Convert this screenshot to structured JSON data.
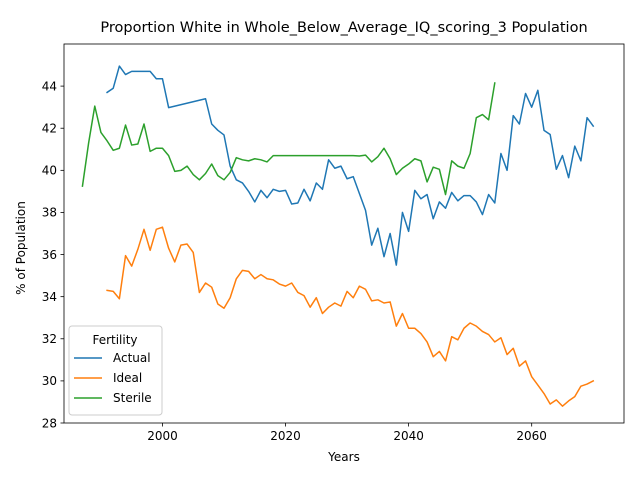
{
  "chart_data": {
    "type": "line",
    "title": "Proportion White in Whole_Below_Average_IQ_scoring_3 Population",
    "xlabel": "Years",
    "ylabel": "% of Population",
    "xlim": [
      1984,
      2075
    ],
    "ylim": [
      28,
      46
    ],
    "xticks": [
      2000,
      2020,
      2040,
      2060
    ],
    "yticks": [
      28,
      30,
      32,
      34,
      36,
      38,
      40,
      42,
      44
    ],
    "legend": {
      "title": "Fertility",
      "placement": "lower-left"
    },
    "series": [
      {
        "name": "Actual",
        "color": "#1f77b4",
        "x": [
          1991,
          1992,
          1993,
          1994,
          1995,
          1996,
          1997,
          1998,
          1999,
          2000,
          2001,
          2007,
          2008,
          2009,
          2010,
          2011,
          2012,
          2013,
          2014,
          2015,
          2016,
          2017,
          2018,
          2019,
          2020,
          2021,
          2022,
          2023,
          2024,
          2025,
          2026,
          2027,
          2028,
          2029,
          2030,
          2031,
          2032,
          2033,
          2034,
          2035,
          2036,
          2037,
          2038,
          2039,
          2040,
          2041,
          2042,
          2043,
          2044,
          2045,
          2046,
          2047,
          2048,
          2049,
          2050,
          2051,
          2052,
          2053,
          2054,
          2055,
          2056,
          2057,
          2058,
          2059,
          2060,
          2061,
          2062,
          2063,
          2064,
          2065,
          2066,
          2067,
          2068,
          2069,
          2070
        ],
        "values": [
          43.7,
          43.9,
          44.95,
          44.55,
          44.7,
          44.7,
          44.7,
          44.7,
          44.35,
          44.35,
          42.98,
          43.4,
          42.2,
          41.9,
          41.68,
          40.2,
          39.55,
          39.4,
          39.0,
          38.5,
          39.05,
          38.7,
          39.1,
          39.0,
          39.05,
          38.4,
          38.45,
          39.1,
          38.55,
          39.4,
          39.1,
          40.5,
          40.1,
          40.2,
          39.6,
          39.7,
          38.9,
          38.1,
          36.45,
          37.25,
          35.9,
          37.0,
          35.5,
          38.0,
          37.1,
          39.05,
          38.65,
          38.85,
          37.7,
          38.5,
          38.2,
          38.95,
          38.55,
          38.8,
          38.8,
          38.5,
          37.9,
          38.85,
          38.45,
          40.8,
          40.0,
          42.6,
          42.2,
          43.65,
          43.0,
          43.8,
          41.9,
          41.7,
          40.05,
          40.7,
          39.65,
          41.15,
          40.45,
          42.5,
          42.1
        ]
      },
      {
        "name": "Ideal",
        "color": "#ff7f0e",
        "x": [
          1991,
          1992,
          1993,
          1994,
          1995,
          1996,
          1997,
          1998,
          1999,
          2000,
          2001,
          2002,
          2003,
          2004,
          2005,
          2006,
          2007,
          2008,
          2009,
          2010,
          2011,
          2012,
          2013,
          2014,
          2015,
          2016,
          2017,
          2018,
          2019,
          2020,
          2021,
          2022,
          2023,
          2024,
          2025,
          2026,
          2027,
          2028,
          2029,
          2030,
          2031,
          2032,
          2033,
          2034,
          2035,
          2036,
          2037,
          2038,
          2039,
          2040,
          2041,
          2042,
          2043,
          2044,
          2045,
          2046,
          2047,
          2048,
          2049,
          2050,
          2051,
          2052,
          2053,
          2054,
          2055,
          2056,
          2057,
          2058,
          2059,
          2060,
          2061,
          2062,
          2063,
          2064,
          2065,
          2066,
          2067,
          2068,
          2069,
          2070
        ],
        "values": [
          34.3,
          34.25,
          33.9,
          35.95,
          35.45,
          36.25,
          37.2,
          36.2,
          37.2,
          37.3,
          36.3,
          35.65,
          36.45,
          36.5,
          36.1,
          34.2,
          34.65,
          34.45,
          33.65,
          33.45,
          33.95,
          34.85,
          35.25,
          35.2,
          34.85,
          35.05,
          34.85,
          34.8,
          34.6,
          34.5,
          34.65,
          34.2,
          34.05,
          33.5,
          33.95,
          33.2,
          33.5,
          33.7,
          33.55,
          34.25,
          33.95,
          34.5,
          34.35,
          33.8,
          33.85,
          33.7,
          33.75,
          32.6,
          33.2,
          32.5,
          32.5,
          32.25,
          31.85,
          31.15,
          31.4,
          30.95,
          32.1,
          31.95,
          32.5,
          32.75,
          32.6,
          32.35,
          32.2,
          31.85,
          32.05,
          31.25,
          31.55,
          30.7,
          30.95,
          30.2,
          29.8,
          29.4,
          28.9,
          29.1,
          28.8,
          29.05,
          29.25,
          29.75,
          29.85,
          30.0
        ]
      },
      {
        "name": "Sterile",
        "color": "#2ca02c",
        "x": [
          1987,
          1988,
          1989,
          1990,
          1991,
          1992,
          1993,
          1994,
          1995,
          1996,
          1997,
          1998,
          1999,
          2000,
          2001,
          2002,
          2003,
          2004,
          2005,
          2006,
          2007,
          2008,
          2009,
          2010,
          2011,
          2012,
          2013,
          2014,
          2015,
          2016,
          2017,
          2018,
          2019,
          2020,
          2021,
          2022,
          2023,
          2024,
          2025,
          2026,
          2027,
          2028,
          2029,
          2030,
          2031,
          2032,
          2033,
          2034,
          2035,
          2036,
          2037,
          2038,
          2039,
          2040,
          2041,
          2042,
          2043,
          2044,
          2045,
          2046,
          2047,
          2048,
          2049,
          2050,
          2051,
          2052,
          2053,
          2054
        ],
        "values": [
          39.25,
          41.3,
          43.05,
          41.8,
          41.4,
          40.95,
          41.05,
          42.15,
          41.2,
          41.25,
          42.2,
          40.9,
          41.05,
          41.05,
          40.7,
          39.95,
          40.0,
          40.2,
          39.8,
          39.55,
          39.85,
          40.3,
          39.75,
          39.55,
          39.9,
          40.6,
          40.5,
          40.45,
          40.55,
          40.5,
          40.4,
          40.7,
          40.7,
          40.7,
          40.7,
          40.7,
          40.7,
          40.7,
          40.7,
          40.7,
          40.7,
          40.7,
          40.7,
          40.7,
          40.7,
          40.68,
          40.72,
          40.4,
          40.65,
          41.05,
          40.55,
          39.8,
          40.1,
          40.3,
          40.55,
          40.45,
          39.45,
          40.15,
          40.05,
          38.85,
          40.45,
          40.2,
          40.1,
          40.8,
          42.5,
          42.65,
          42.4,
          44.15
        ]
      }
    ]
  }
}
